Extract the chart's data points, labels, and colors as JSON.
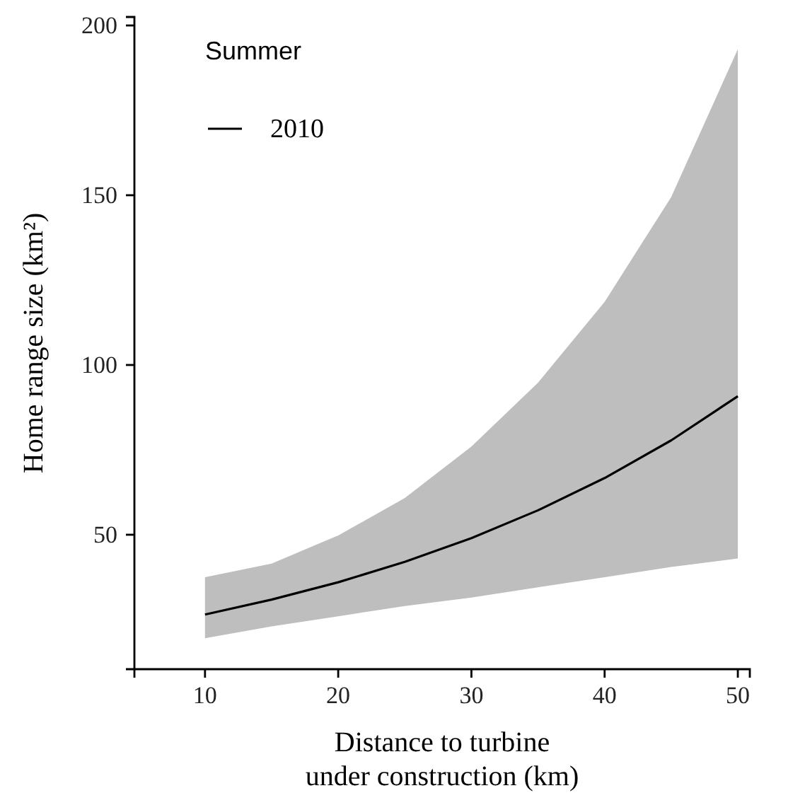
{
  "chart_data": {
    "type": "line",
    "xlabel": "Distance to turbine\nunder construction (km)",
    "ylabel": "Home range size (km²)",
    "legend_title": "Summer",
    "legend": "top left",
    "grid": false,
    "xlim": [
      4.7,
      50.9
    ],
    "xticks": [
      10,
      20,
      30,
      40,
      50
    ],
    "ylim": [
      10.4,
      202.5
    ],
    "yticks": [
      50,
      100,
      150,
      200
    ],
    "x": [
      10,
      15,
      20,
      25,
      30,
      35,
      40,
      45,
      50
    ],
    "series": [
      {
        "name": "2010",
        "color": "#000000",
        "values": [
          26.5,
          30.9,
          36.0,
          42.0,
          49.0,
          57.2,
          66.7,
          77.8,
          90.8
        ],
        "lower": [
          19.5,
          23,
          26,
          29,
          31.5,
          34.5,
          37.5,
          40.5,
          43
        ],
        "upper": [
          37.5,
          41.5,
          49.8,
          60.8,
          76,
          94.8,
          118.6,
          149.5,
          193
        ]
      }
    ]
  }
}
